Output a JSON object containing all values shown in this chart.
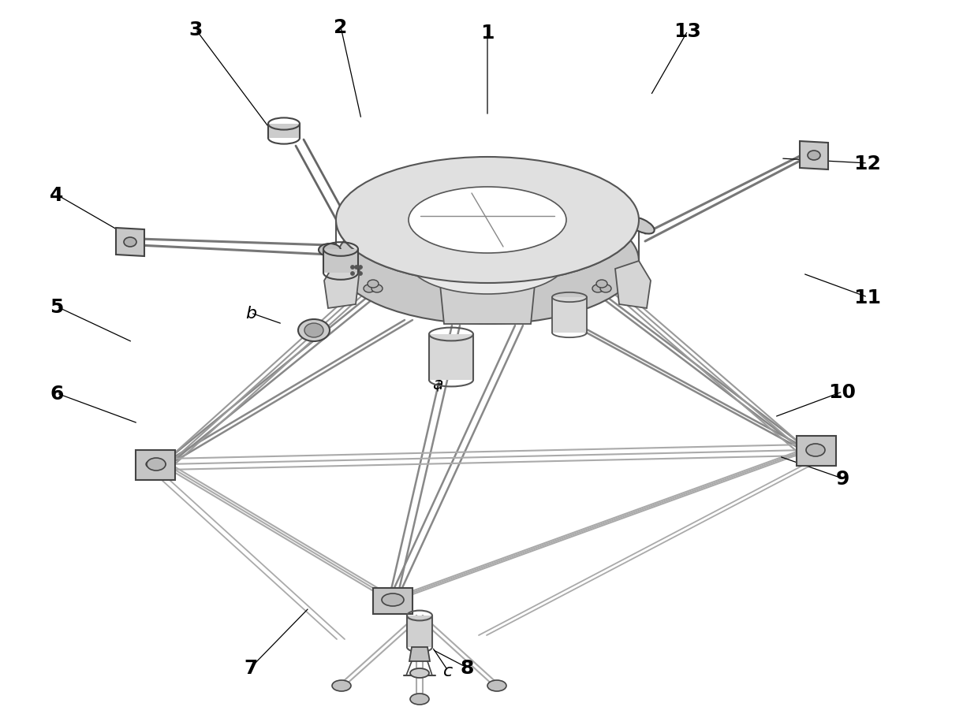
{
  "bg": "#ffffff",
  "fig_width": 12.4,
  "fig_height": 9.12,
  "dpi": 100,
  "labels_numeric": [
    [
      "1",
      618,
      42
    ],
    [
      "2",
      432,
      35
    ],
    [
      "3",
      248,
      38
    ],
    [
      "4",
      72,
      248
    ],
    [
      "5",
      72,
      390
    ],
    [
      "6",
      72,
      500
    ],
    [
      "7",
      318,
      848
    ],
    [
      "8",
      592,
      848
    ],
    [
      "9",
      1068,
      608
    ],
    [
      "10",
      1068,
      498
    ],
    [
      "11",
      1100,
      378
    ],
    [
      "12",
      1100,
      208
    ],
    [
      "13",
      872,
      40
    ]
  ],
  "labels_alpha": [
    [
      "a",
      555,
      488
    ],
    [
      "b",
      318,
      398
    ],
    [
      "c",
      568,
      852
    ]
  ],
  "leader_lines": [
    [
      "1",
      618,
      42,
      618,
      148
    ],
    [
      "2",
      432,
      35,
      458,
      152
    ],
    [
      "3",
      248,
      38,
      348,
      172
    ],
    [
      "4",
      72,
      248,
      162,
      300
    ],
    [
      "5",
      72,
      390,
      168,
      435
    ],
    [
      "6",
      72,
      500,
      175,
      538
    ],
    [
      "7",
      318,
      848,
      392,
      772
    ],
    [
      "8",
      592,
      848,
      548,
      825
    ],
    [
      "9",
      1068,
      608,
      988,
      580
    ],
    [
      "10",
      1068,
      498,
      982,
      530
    ],
    [
      "11",
      1100,
      378,
      1018,
      348
    ],
    [
      "12",
      1100,
      208,
      990,
      202
    ],
    [
      "13",
      872,
      40,
      825,
      122
    ],
    [
      "a",
      555,
      488,
      555,
      500
    ],
    [
      "b",
      318,
      398,
      358,
      412
    ],
    [
      "c",
      568,
      852,
      548,
      822
    ]
  ]
}
